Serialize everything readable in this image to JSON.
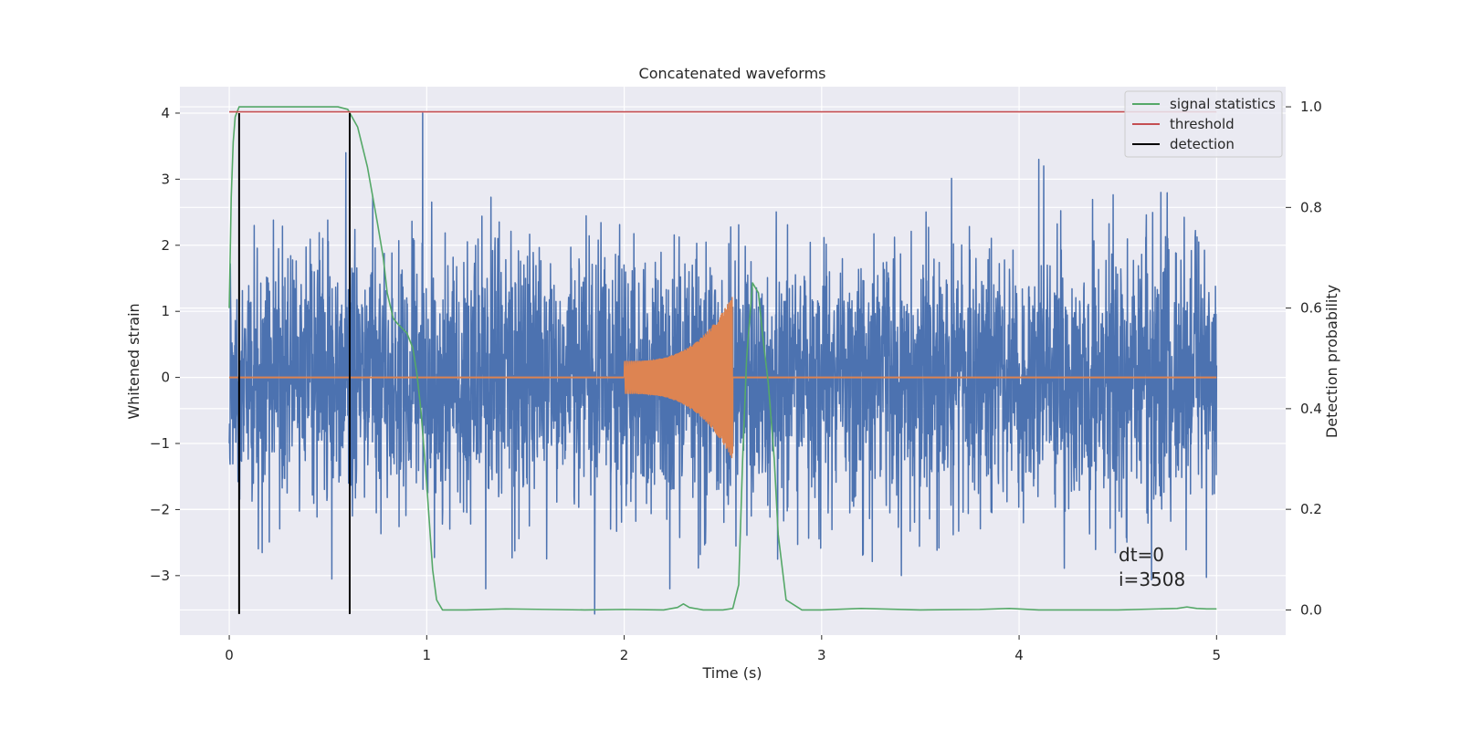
{
  "chart_data": {
    "type": "line",
    "title": "Concatenated waveforms",
    "xlabel": "Time (s)",
    "ylabel_left": "Whitened strain",
    "ylabel_right": "Detection probability",
    "xlim": [
      -0.25,
      5.35
    ],
    "ylim_left": [
      -3.9,
      4.4
    ],
    "ylim_right": [
      -0.05,
      1.04
    ],
    "x_ticks": [
      0,
      1,
      2,
      3,
      4,
      5
    ],
    "y_left_ticks": [
      -3,
      -2,
      -1,
      0,
      1,
      2,
      3,
      4
    ],
    "y_right_ticks": [
      0.0,
      0.2,
      0.4,
      0.6,
      0.8,
      1.0
    ],
    "x_tick_labels": [
      "0",
      "1",
      "2",
      "3",
      "4",
      "5"
    ],
    "y_left_tick_labels": [
      "−3",
      "−2",
      "−1",
      "0",
      "1",
      "2",
      "3",
      "4"
    ],
    "y_right_tick_labels": [
      "0.0",
      "0.2",
      "0.4",
      "0.6",
      "0.8",
      "1.0"
    ],
    "grid": true,
    "legend_position": "top-right",
    "colors": {
      "strain": "#4c72b0",
      "injection": "#dd8452",
      "signal_statistics": "#55a868",
      "threshold": "#c44e52",
      "detection": "#000000",
      "background": "#eaeaf2",
      "grid": "#ffffff"
    },
    "legend": [
      {
        "name": "signal statistics",
        "color": "#55a868"
      },
      {
        "name": "threshold",
        "color": "#c44e52"
      },
      {
        "name": "detection",
        "color": "#000000"
      }
    ],
    "series": [
      {
        "name": "signal statistics",
        "axis": "right",
        "x": [
          0,
          0.01,
          0.02,
          0.03,
          0.05,
          0.08,
          0.1,
          0.2,
          0.4,
          0.55,
          0.6,
          0.65,
          0.7,
          0.75,
          0.78,
          0.8,
          0.83,
          0.85,
          0.9,
          0.93,
          0.95,
          0.97,
          1.0,
          1.03,
          1.05,
          1.08,
          1.2,
          1.4,
          1.6,
          1.8,
          2.0,
          2.2,
          2.27,
          2.3,
          2.33,
          2.4,
          2.5,
          2.55,
          2.58,
          2.6,
          2.62,
          2.65,
          2.68,
          2.7,
          2.73,
          2.76,
          2.78,
          2.82,
          2.9,
          3.0,
          3.2,
          3.5,
          3.8,
          3.95,
          4.1,
          4.5,
          4.8,
          4.85,
          4.9,
          4.95,
          5.0
        ],
        "y": [
          0.6,
          0.82,
          0.93,
          0.98,
          1.0,
          1.0,
          1.0,
          1.0,
          1.0,
          1.0,
          0.995,
          0.96,
          0.88,
          0.77,
          0.7,
          0.63,
          0.58,
          0.57,
          0.55,
          0.52,
          0.47,
          0.4,
          0.25,
          0.08,
          0.02,
          0.0,
          0.0,
          0.002,
          0.001,
          0.0,
          0.001,
          0.0,
          0.005,
          0.012,
          0.005,
          0.0,
          0.0,
          0.003,
          0.05,
          0.3,
          0.5,
          0.65,
          0.63,
          0.55,
          0.45,
          0.3,
          0.15,
          0.02,
          0.0,
          0.0,
          0.003,
          0.0,
          0.001,
          0.003,
          0.0,
          0.0,
          0.003,
          0.006,
          0.003,
          0.002,
          0.002
        ]
      },
      {
        "name": "threshold",
        "axis": "right",
        "x": [
          0,
          5
        ],
        "y": [
          0.99,
          0.99
        ]
      },
      {
        "name": "detection",
        "axis": "left",
        "x": [
          0.05,
          0.61
        ],
        "ymin": -3.58,
        "ymax": 4.0
      }
    ],
    "strain_noise": {
      "x_range": [
        0,
        5
      ],
      "typical_amplitude": 1.0,
      "max": 4.0,
      "min": -3.58,
      "notable_peaks": [
        {
          "x": 0.98,
          "y": 4.0
        },
        {
          "x": 0.59,
          "y": 3.4
        },
        {
          "x": 4.1,
          "y": 3.3
        },
        {
          "x": 1.85,
          "y": -3.58
        },
        {
          "x": 0.52,
          "y": -3.05
        }
      ]
    },
    "injection": {
      "x_range": [
        2.0,
        2.55
      ],
      "amplitude_start": 0.25,
      "amplitude_peak": 1.25
    },
    "annotations": [
      "dt=0",
      "i=3508"
    ]
  }
}
